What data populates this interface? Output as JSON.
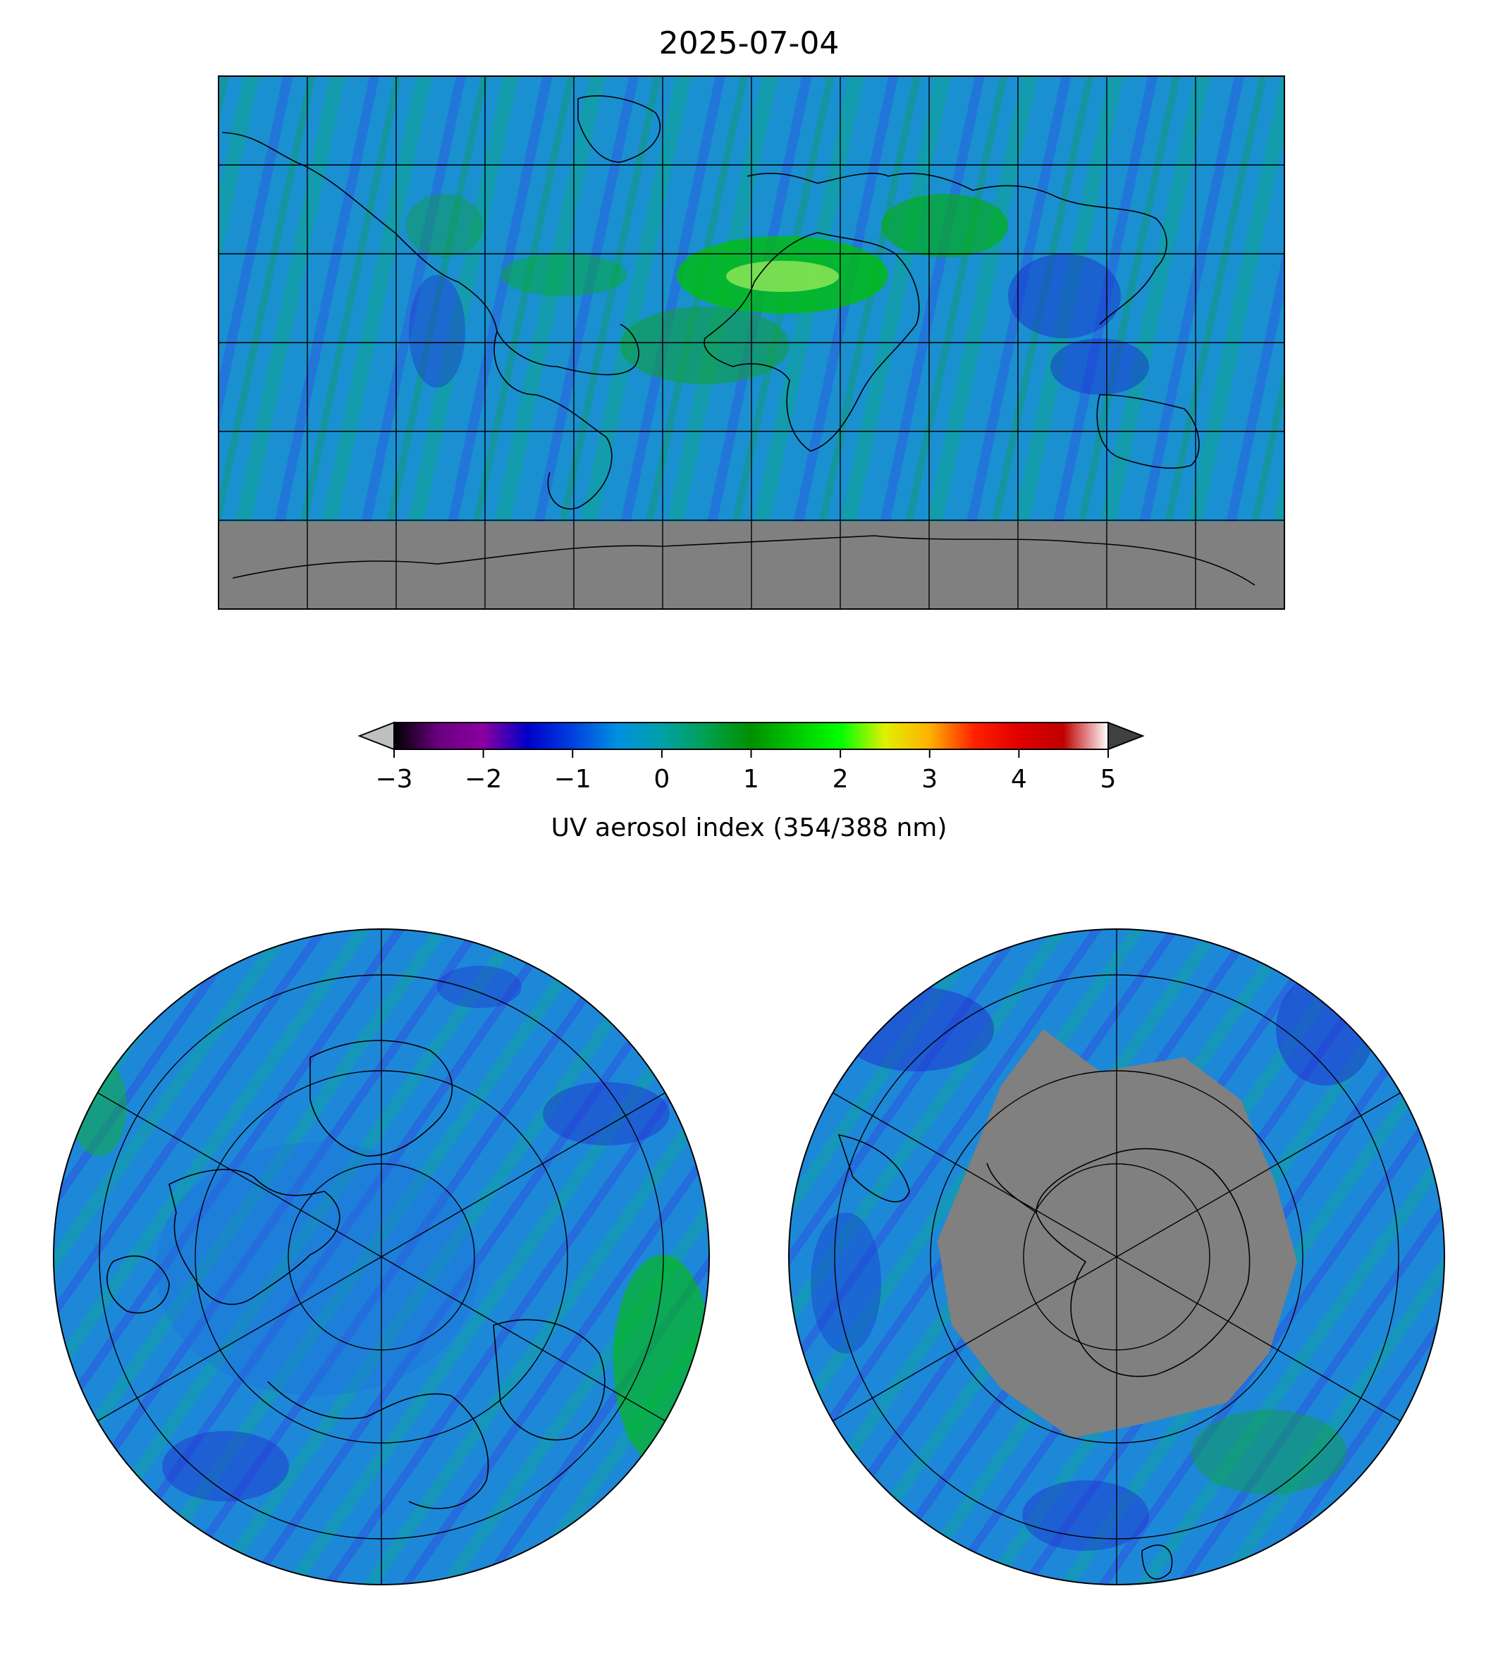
{
  "title": "2025-07-04",
  "colorbar": {
    "label": "UV aerosol index (354/388 nm)",
    "ticks": [
      "−3",
      "−2",
      "−1",
      "0",
      "1",
      "2",
      "3",
      "4",
      "5"
    ],
    "min": -3,
    "max": 5,
    "extend": "both",
    "under_color": "#c0c0c0",
    "over_color": "#404040",
    "stops": [
      {
        "v": -3.0,
        "c": "#000000"
      },
      {
        "v": -2.5,
        "c": "#6a0080"
      },
      {
        "v": -2.0,
        "c": "#8a00a0"
      },
      {
        "v": -1.5,
        "c": "#0000c8"
      },
      {
        "v": -1.0,
        "c": "#0040e0"
      },
      {
        "v": -0.5,
        "c": "#0090e0"
      },
      {
        "v": 0.0,
        "c": "#00a0a8"
      },
      {
        "v": 0.5,
        "c": "#00a050"
      },
      {
        "v": 1.0,
        "c": "#009000"
      },
      {
        "v": 1.5,
        "c": "#00c800"
      },
      {
        "v": 2.0,
        "c": "#00ff00"
      },
      {
        "v": 2.5,
        "c": "#e0f000"
      },
      {
        "v": 3.0,
        "c": "#ffb000"
      },
      {
        "v": 3.5,
        "c": "#ff2000"
      },
      {
        "v": 4.0,
        "c": "#e00000"
      },
      {
        "v": 4.5,
        "c": "#c00000"
      },
      {
        "v": 5.0,
        "c": "#ffffff"
      }
    ]
  },
  "maps": {
    "global": {
      "projection": "plate-carree",
      "no_data_color": "#808080",
      "background_color": "#1aa0c8"
    },
    "north_pole": {
      "projection": "north-polar-stereographic",
      "background_color": "#1e88d8"
    },
    "south_pole": {
      "projection": "south-polar-stereographic",
      "no_data_color": "#808080",
      "background_color": "#1e88d8"
    }
  }
}
